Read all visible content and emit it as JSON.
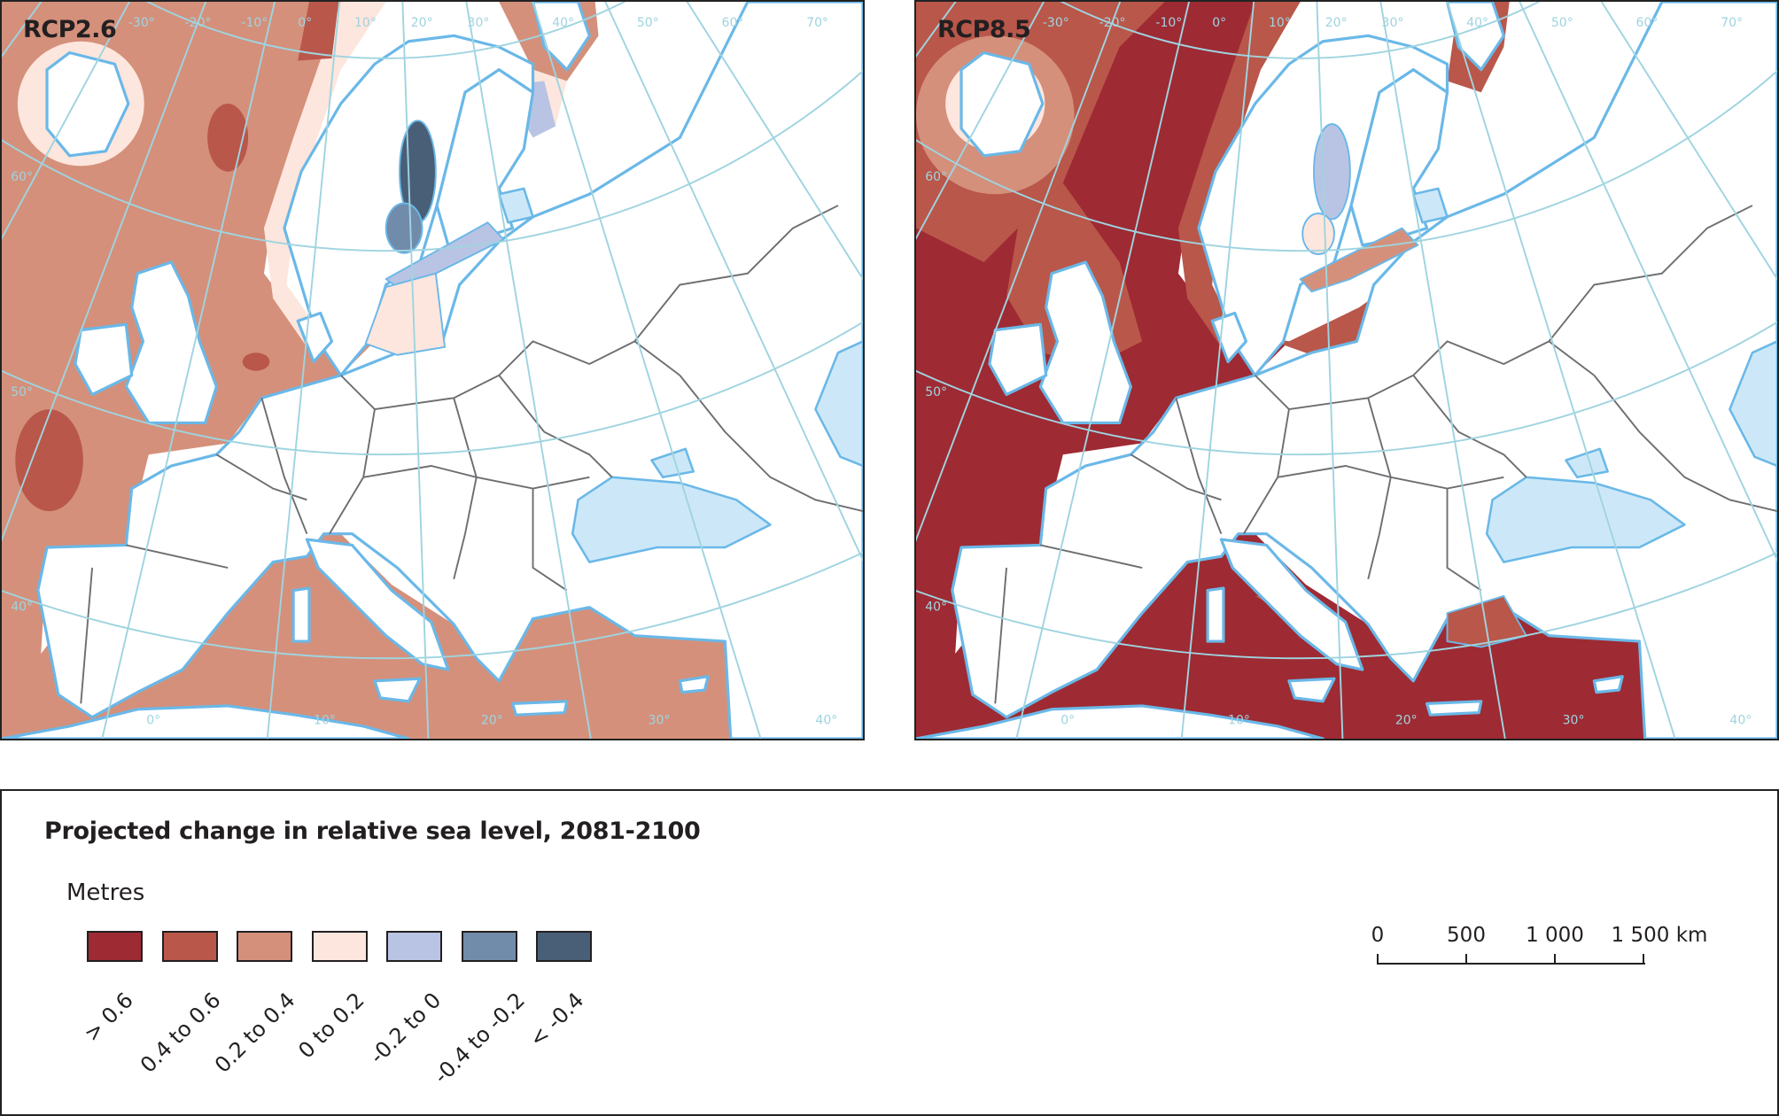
{
  "legend": {
    "title": "Projected change in relative sea level, 2081-2100",
    "unit": "Metres",
    "classes": [
      {
        "label": "> 0.6",
        "color": "#9e2a33"
      },
      {
        "label": "0.4 to 0.6",
        "color": "#b9574a"
      },
      {
        "label": "0.2 to 0.4",
        "color": "#d4907b"
      },
      {
        "label": "0 to 0.2",
        "color": "#fde6dd"
      },
      {
        "label": "-0.2 to 0",
        "color": "#b9c4e4"
      },
      {
        "label": "-0.4 to -0.2",
        "color": "#718bab"
      },
      {
        "label": "< -0.4",
        "color": "#495f77"
      }
    ]
  },
  "scale_bar": {
    "labels": [
      "0",
      "500",
      "1 000",
      "1 500 km"
    ]
  },
  "colors": {
    "coastline": "#6ab8e8",
    "inland_water": "#cce8f8",
    "graticule": "#9fd4e0",
    "border": "#6d6e71"
  },
  "graticule_labels": {
    "top": [
      "-30°",
      "-20°",
      "-10°",
      "0°",
      "10°",
      "20°",
      "30°",
      "40°",
      "50°",
      "60°",
      "70°"
    ],
    "left": [
      "60°",
      "50°",
      "40°"
    ],
    "bottom": [
      "0°",
      "10°",
      "20°",
      "30°",
      "40°"
    ]
  },
  "panels": [
    {
      "title": "RCP2.6"
    },
    {
      "title": "RCP8.5"
    }
  ]
}
